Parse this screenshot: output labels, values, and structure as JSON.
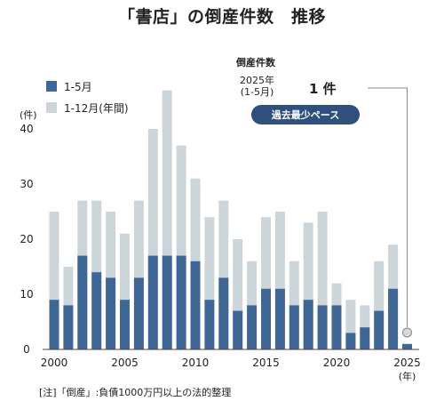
{
  "title": "「書店」の倒産件数　推移",
  "legend": {
    "series1": "1-5月",
    "series2": "1-12月(年間)",
    "color1": "#3f6796",
    "color2": "#cbd5da"
  },
  "y_unit": "(件)",
  "x_unit": "(年)",
  "callout": {
    "label": "倒産件数",
    "year_line1": "2025年",
    "year_line2": "(1-5月)",
    "value": "1 件",
    "badge": "過去最少ペース"
  },
  "note": "[注]「倒産」:負債1000万円以上の法的整理",
  "chart_data": {
    "type": "bar",
    "title": "「書店」の倒産件数　推移",
    "categories": [
      "2000",
      "2001",
      "2002",
      "2003",
      "2004",
      "2005",
      "2006",
      "2007",
      "2008",
      "2009",
      "2010",
      "2011",
      "2012",
      "2013",
      "2014",
      "2015",
      "2016",
      "2017",
      "2018",
      "2019",
      "2020",
      "2021",
      "2022",
      "2023",
      "2024",
      "2025"
    ],
    "series": [
      {
        "name": "1-5月",
        "values": [
          9,
          8,
          17,
          14,
          13,
          9,
          13,
          17,
          17,
          17,
          16,
          9,
          13,
          7,
          8,
          11,
          11,
          8,
          9,
          8,
          8,
          3,
          4,
          7,
          11,
          1
        ]
      },
      {
        "name": "1-12月(年間)",
        "values": [
          25,
          15,
          27,
          27,
          25,
          21,
          27,
          40,
          47,
          37,
          31,
          24,
          27,
          20,
          16,
          24,
          25,
          16,
          23,
          25,
          12,
          9,
          8,
          16,
          19,
          null
        ]
      }
    ],
    "ylim": [
      0,
      47
    ],
    "yticks": [
      0,
      10,
      20,
      30,
      40
    ],
    "xticks": [
      "2000",
      "2005",
      "2010",
      "2015",
      "2020",
      "2025"
    ],
    "overlay": true,
    "grid": false,
    "legend_position": "top-left"
  }
}
